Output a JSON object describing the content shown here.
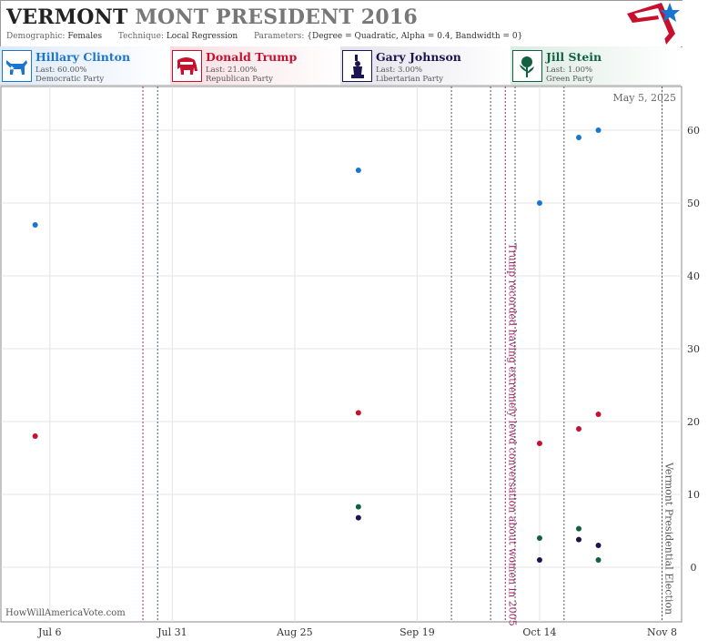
{
  "header": {
    "title_state": "VERMONT",
    "title_rest": "MONT PRESIDENT 2016",
    "demographic_label": "Demographic:",
    "demographic_value": "Females",
    "technique_label": "Technique:",
    "technique_value": "Local Regression",
    "parameters_label": "Parameters:",
    "parameters_value": "{Degree = Quadratic, Alpha = 0.4, Bandwidth = 0}"
  },
  "candidates": [
    {
      "name": "Hillary Clinton",
      "last": "Last: 60.00%",
      "party": "Democratic Party",
      "color": "#1a75d1",
      "bg": "#dde9f7",
      "icon": "donkey-icon"
    },
    {
      "name": "Donald Trump",
      "last": "Last: 21.00%",
      "party": "Republican Party",
      "color": "#c8102e",
      "bg": "#f7dde1",
      "icon": "elephant-icon"
    },
    {
      "name": "Gary Johnson",
      "last": "Last: 3.00%",
      "party": "Libertarian Party",
      "color": "#1c1450",
      "bg": "#e3e2ea",
      "icon": "statue-of-liberty-icon"
    },
    {
      "name": "Jill Stein",
      "last": "Last: 1.00%",
      "party": "Green Party",
      "color": "#116040",
      "bg": "#dcebe3",
      "icon": "rose-icon"
    }
  ],
  "watermark": "HowWillAmericaVote.com",
  "chart_data": {
    "type": "scatter",
    "date_label": "May 5, 2025",
    "x_ticks": [
      "2016-07-06",
      "2016-07-31",
      "2016-08-25",
      "2016-09-19",
      "2016-10-14",
      "2016-11-08"
    ],
    "x_tick_labels": [
      "Jul 6",
      "Jul 31",
      "Aug 25",
      "Sep 19",
      "Oct 14",
      "Nov 8"
    ],
    "xlim": [
      "2016-06-26",
      "2016-11-12"
    ],
    "y_ticks": [
      0,
      10,
      20,
      30,
      40,
      50,
      60
    ],
    "ylim": [
      -7.5,
      66
    ],
    "y_axis_side": "right",
    "grid": true,
    "series": [
      {
        "name": "Hillary Clinton",
        "color": "#1a75d1",
        "points": [
          {
            "x": "2016-07-03",
            "y": 47
          },
          {
            "x": "2016-09-07",
            "y": 54.5
          },
          {
            "x": "2016-10-14",
            "y": 50
          },
          {
            "x": "2016-10-22",
            "y": 59
          },
          {
            "x": "2016-10-26",
            "y": 60
          }
        ]
      },
      {
        "name": "Donald Trump",
        "color": "#c8102e",
        "points": [
          {
            "x": "2016-07-03",
            "y": 18
          },
          {
            "x": "2016-09-07",
            "y": 21.2
          },
          {
            "x": "2016-10-14",
            "y": 17
          },
          {
            "x": "2016-10-22",
            "y": 19
          },
          {
            "x": "2016-10-26",
            "y": 21
          }
        ]
      },
      {
        "name": "Gary Johnson",
        "color": "#1c1450",
        "points": [
          {
            "x": "2016-09-07",
            "y": 6.8
          },
          {
            "x": "2016-10-14",
            "y": 1
          },
          {
            "x": "2016-10-22",
            "y": 3.8
          },
          {
            "x": "2016-10-26",
            "y": 3
          }
        ]
      },
      {
        "name": "Jill Stein",
        "color": "#116040",
        "points": [
          {
            "x": "2016-09-07",
            "y": 8.3
          },
          {
            "x": "2016-10-14",
            "y": 4
          },
          {
            "x": "2016-10-22",
            "y": 5.3
          },
          {
            "x": "2016-10-26",
            "y": 1
          }
        ]
      }
    ],
    "events": [
      {
        "x": "2016-07-25",
        "color": "#a0246a",
        "label": ""
      },
      {
        "x": "2016-07-28",
        "color": "#2a5f8a",
        "label": ""
      },
      {
        "x": "2016-09-26",
        "color": "#555555",
        "label": ""
      },
      {
        "x": "2016-10-04",
        "color": "#555555",
        "label": ""
      },
      {
        "x": "2016-10-07",
        "color": "#a0246a",
        "label": "Trump recorded having extremely lewd conversation about women in 2005"
      },
      {
        "x": "2016-10-09",
        "color": "#555555",
        "label": ""
      },
      {
        "x": "2016-10-19",
        "color": "#555555",
        "label": ""
      },
      {
        "x": "2016-11-08",
        "color": "#555555",
        "label": "Vermont Presidential Election"
      }
    ]
  }
}
